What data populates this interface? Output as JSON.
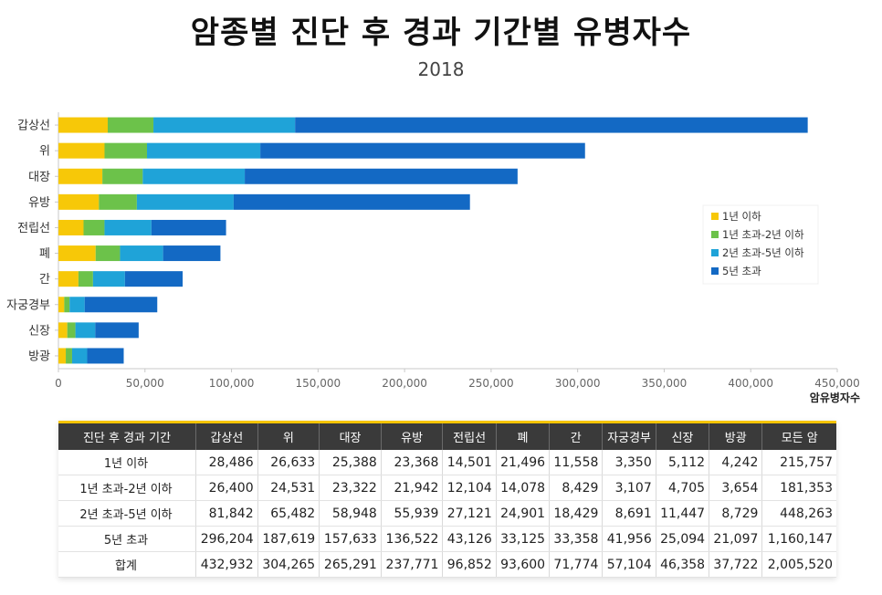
{
  "chart_data": {
    "type": "bar",
    "orientation": "horizontal",
    "stacked": true,
    "title": "암종별 진단 후 경과 기간별 유병자수",
    "subtitle": "2018",
    "xlabel": "암유병자수",
    "xlim": [
      0,
      450000
    ],
    "xticks": [
      "0",
      "50,000",
      "100,000",
      "150,000",
      "200,000",
      "250,000",
      "300,000",
      "350,000",
      "400,000",
      "450,000"
    ],
    "categories": [
      "갑상선",
      "위",
      "대장",
      "유방",
      "전립선",
      "폐",
      "간",
      "자궁경부",
      "신장",
      "방광"
    ],
    "series": [
      {
        "name": "1년 이하",
        "color": "#f7c808",
        "values": [
          28486,
          26633,
          25388,
          23368,
          14501,
          21496,
          11558,
          3350,
          5112,
          4242
        ]
      },
      {
        "name": "1년 초과-2년 이하",
        "color": "#6cc24a",
        "values": [
          26400,
          24531,
          23322,
          21942,
          12104,
          14078,
          8429,
          3107,
          4705,
          3654
        ]
      },
      {
        "name": "2년 초과-5년 이하",
        "color": "#1fa3d8",
        "values": [
          81842,
          65482,
          58948,
          55939,
          27121,
          24901,
          18429,
          8691,
          11447,
          8729
        ]
      },
      {
        "name": "5년 초과",
        "color": "#1369c4",
        "values": [
          296204,
          187619,
          157633,
          136522,
          43126,
          33125,
          33358,
          41956,
          25094,
          21097
        ]
      }
    ],
    "legend_position": "right"
  },
  "table": {
    "headers": [
      "진단 후 경과 기간",
      "갑상선",
      "위",
      "대장",
      "유방",
      "전립선",
      "폐",
      "간",
      "자궁경부",
      "신장",
      "방광",
      "모든 암"
    ],
    "rows": [
      [
        "1년 이하",
        "28,486",
        "26,633",
        "25,388",
        "23,368",
        "14,501",
        "21,496",
        "11,558",
        "3,350",
        "5,112",
        "4,242",
        "215,757"
      ],
      [
        "1년 초과-2년 이하",
        "26,400",
        "24,531",
        "23,322",
        "21,942",
        "12,104",
        "14,078",
        "8,429",
        "3,107",
        "4,705",
        "3,654",
        "181,353"
      ],
      [
        "2년 초과-5년 이하",
        "81,842",
        "65,482",
        "58,948",
        "55,939",
        "27,121",
        "24,901",
        "18,429",
        "8,691",
        "11,447",
        "8,729",
        "448,263"
      ],
      [
        "5년 초과",
        "296,204",
        "187,619",
        "157,633",
        "136,522",
        "43,126",
        "33,125",
        "33,358",
        "41,956",
        "25,094",
        "21,097",
        "1,160,147"
      ],
      [
        "합계",
        "432,932",
        "304,265",
        "265,291",
        "237,771",
        "96,852",
        "93,600",
        "71,774",
        "57,104",
        "46,358",
        "37,722",
        "2,005,520"
      ]
    ]
  }
}
